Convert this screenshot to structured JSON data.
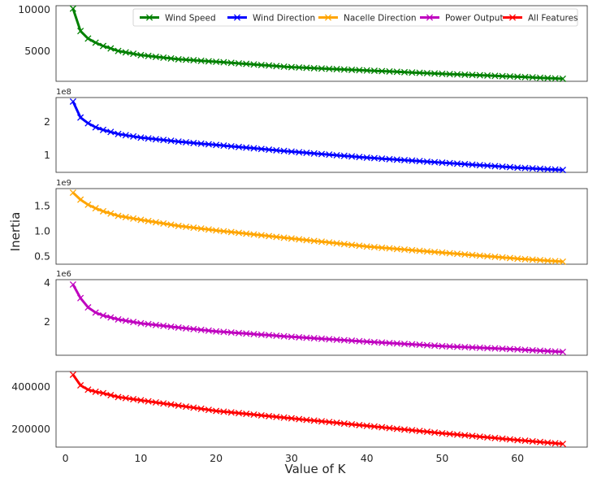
{
  "figure": {
    "ylabel": "Inertia",
    "xlabel": "Value of K"
  },
  "legend": {
    "placement": "top-right",
    "entries": [
      {
        "name": "Wind Speed",
        "color": "#008000"
      },
      {
        "name": "Wind Direction",
        "color": "#0000ff"
      },
      {
        "name": "Nacelle Direction",
        "color": "#ffa500"
      },
      {
        "name": "Power Output",
        "color": "#bf00bf"
      },
      {
        "name": "All Features",
        "color": "#ff0000"
      }
    ]
  },
  "chart_data": [
    {
      "type": "line",
      "series": [
        {
          "name": "Wind Speed",
          "color": "#008000",
          "knots": [
            [
              1,
              10100
            ],
            [
              2,
              7400
            ],
            [
              3,
              6500
            ],
            [
              4,
              6000
            ],
            [
              5,
              5600
            ],
            [
              7,
              5000
            ],
            [
              10,
              4500
            ],
            [
              15,
              4000
            ],
            [
              20,
              3700
            ],
            [
              30,
              3050
            ],
            [
              40,
              2650
            ],
            [
              50,
              2250
            ],
            [
              60,
              1900
            ],
            [
              66,
              1650
            ]
          ]
        }
      ],
      "x": {
        "min": 1,
        "max": 66
      },
      "xlim": [
        -1.25,
        69.25
      ],
      "ylim": [
        1350,
        10450
      ],
      "ticks": [
        5000,
        10000
      ],
      "tick_labels": [
        "5000",
        "10000"
      ],
      "offset": ""
    },
    {
      "type": "line",
      "series": [
        {
          "name": "Wind Direction",
          "color": "#0000ff",
          "knots": [
            [
              1,
              2.6
            ],
            [
              2,
              2.12
            ],
            [
              3,
              1.95
            ],
            [
              4,
              1.83
            ],
            [
              5,
              1.75
            ],
            [
              7,
              1.63
            ],
            [
              10,
              1.52
            ],
            [
              15,
              1.4
            ],
            [
              20,
              1.3
            ],
            [
              30,
              1.1
            ],
            [
              40,
              0.92
            ],
            [
              50,
              0.77
            ],
            [
              60,
              0.62
            ],
            [
              66,
              0.55
            ]
          ]
        }
      ],
      "x": {
        "min": 1,
        "max": 66
      },
      "xlim": [
        -1.25,
        69.25
      ],
      "ylim": [
        0.48,
        2.72
      ],
      "ticks": [
        1,
        2
      ],
      "tick_labels": [
        "1",
        "2"
      ],
      "offset": "1e8"
    },
    {
      "type": "line",
      "series": [
        {
          "name": "Nacelle Direction",
          "color": "#ffa500",
          "knots": [
            [
              1,
              1.76
            ],
            [
              2,
              1.62
            ],
            [
              3,
              1.52
            ],
            [
              4,
              1.45
            ],
            [
              5,
              1.39
            ],
            [
              7,
              1.3
            ],
            [
              10,
              1.22
            ],
            [
              15,
              1.1
            ],
            [
              20,
              1.01
            ],
            [
              30,
              0.85
            ],
            [
              40,
              0.69
            ],
            [
              50,
              0.57
            ],
            [
              60,
              0.45
            ],
            [
              66,
              0.39
            ]
          ]
        }
      ],
      "x": {
        "min": 1,
        "max": 66
      },
      "xlim": [
        -1.25,
        69.25
      ],
      "ylim": [
        0.34,
        1.84
      ],
      "ticks": [
        0.5,
        1.0,
        1.5
      ],
      "tick_labels": [
        "0.5",
        "1.0",
        "1.5"
      ],
      "offset": "1e9"
    },
    {
      "type": "line",
      "series": [
        {
          "name": "Power Output",
          "color": "#bf00bf",
          "knots": [
            [
              1,
              3.9
            ],
            [
              2,
              3.2
            ],
            [
              3,
              2.72
            ],
            [
              4,
              2.45
            ],
            [
              5,
              2.3
            ],
            [
              7,
              2.1
            ],
            [
              10,
              1.9
            ],
            [
              15,
              1.68
            ],
            [
              20,
              1.48
            ],
            [
              30,
              1.2
            ],
            [
              40,
              0.95
            ],
            [
              50,
              0.72
            ],
            [
              60,
              0.55
            ],
            [
              66,
              0.42
            ]
          ]
        }
      ],
      "x": {
        "min": 1,
        "max": 66
      },
      "xlim": [
        -1.25,
        69.25
      ],
      "ylim": [
        0.25,
        4.15
      ],
      "ticks": [
        2,
        4
      ],
      "tick_labels": [
        "2",
        "4"
      ],
      "offset": "1e6"
    },
    {
      "type": "line",
      "series": [
        {
          "name": "All Features",
          "color": "#ff0000",
          "knots": [
            [
              1,
              455000
            ],
            [
              2,
              405000
            ],
            [
              3,
              385000
            ],
            [
              4,
              375000
            ],
            [
              5,
              368000
            ],
            [
              7,
              350000
            ],
            [
              10,
              335000
            ],
            [
              15,
              310000
            ],
            [
              20,
              285000
            ],
            [
              30,
              250000
            ],
            [
              40,
              215000
            ],
            [
              50,
              180000
            ],
            [
              60,
              148000
            ],
            [
              66,
              130000
            ]
          ]
        }
      ],
      "x": {
        "min": 1,
        "max": 66
      },
      "xlim": [
        -1.25,
        69.25
      ],
      "ylim": [
        115000,
        470000
      ],
      "ticks": [
        200000,
        400000
      ],
      "tick_labels": [
        "200000",
        "400000"
      ],
      "offset": ""
    }
  ],
  "xaxis": {
    "ticks": [
      0,
      10,
      20,
      30,
      40,
      50,
      60
    ],
    "tick_labels": [
      "0",
      "10",
      "20",
      "30",
      "40",
      "50",
      "60"
    ]
  },
  "grid": false
}
